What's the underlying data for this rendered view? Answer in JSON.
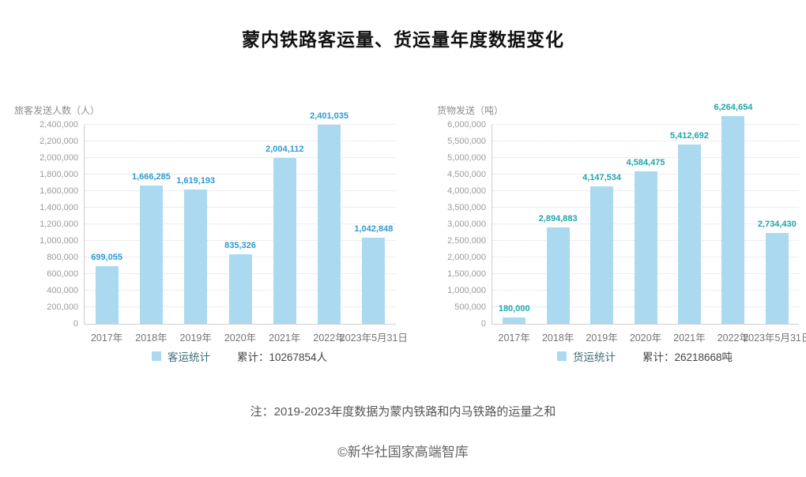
{
  "title": "蒙内铁路客运量、货运量年度数据变化",
  "note": "注：2019-2023年度数据为蒙内铁路和内马铁路的运量之和",
  "footer": "©新华社国家高端智库",
  "colors": {
    "bar": "#abd9f0",
    "passenger_value_label": "#2d9bd3",
    "freight_value_label": "#1fa6ad",
    "gridline": "#dddddd",
    "axis": "#cfcfcf",
    "tick_text": "#9b9b9b"
  },
  "chart_data": [
    {
      "type": "bar",
      "name": "passenger-volume",
      "ylabel": "旅客发送人数（人）",
      "categories": [
        "2017年",
        "2018年",
        "2019年",
        "2020年",
        "2021年",
        "2022年",
        "2023年5月31日"
      ],
      "values": [
        699055,
        1666285,
        1619193,
        835326,
        2004112,
        2401035,
        1042848
      ],
      "ylim": [
        0,
        2400000
      ],
      "ytick_step": 200000,
      "grid": true,
      "legend_position": "bottom",
      "bar_color": "#abd9f0",
      "value_label_color": "#2d9bd3",
      "legend": {
        "label": "客运统计",
        "cumulative": "累计：10267854人"
      }
    },
    {
      "type": "bar",
      "name": "freight-volume",
      "ylabel": "货物发送（吨）",
      "categories": [
        "2017年",
        "2018年",
        "2019年",
        "2020年",
        "2021年",
        "2022年",
        "2023年5月31日"
      ],
      "values": [
        180000,
        2894883,
        4147534,
        4584475,
        5412692,
        6264654,
        2734430
      ],
      "ylim": [
        0,
        6000000
      ],
      "ytick_step": 500000,
      "grid": true,
      "legend_position": "bottom",
      "bar_color": "#abd9f0",
      "value_label_color": "#1fa6ad",
      "legend": {
        "label": "货运统计",
        "cumulative": "累计：26218668吨"
      }
    }
  ]
}
